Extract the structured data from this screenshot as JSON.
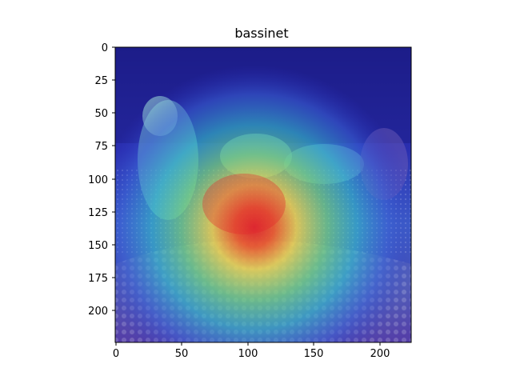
{
  "figure": {
    "title": "bassinet"
  },
  "image": {
    "description_keywords": [],
    "overlay_colormap": "jet",
    "colors": {
      "hot": "#e3262b",
      "warm": "#f1d44a",
      "mid": "#33b8c7",
      "cool": "#2b2fc4",
      "cold": "#1a1a8a"
    }
  },
  "axes": {
    "x_ticks": [
      "0",
      "50",
      "100",
      "150",
      "200"
    ],
    "y_ticks": [
      "0",
      "25",
      "50",
      "75",
      "100",
      "125",
      "150",
      "175",
      "200"
    ],
    "x_range": [
      0,
      224
    ],
    "y_range": [
      0,
      224
    ]
  }
}
